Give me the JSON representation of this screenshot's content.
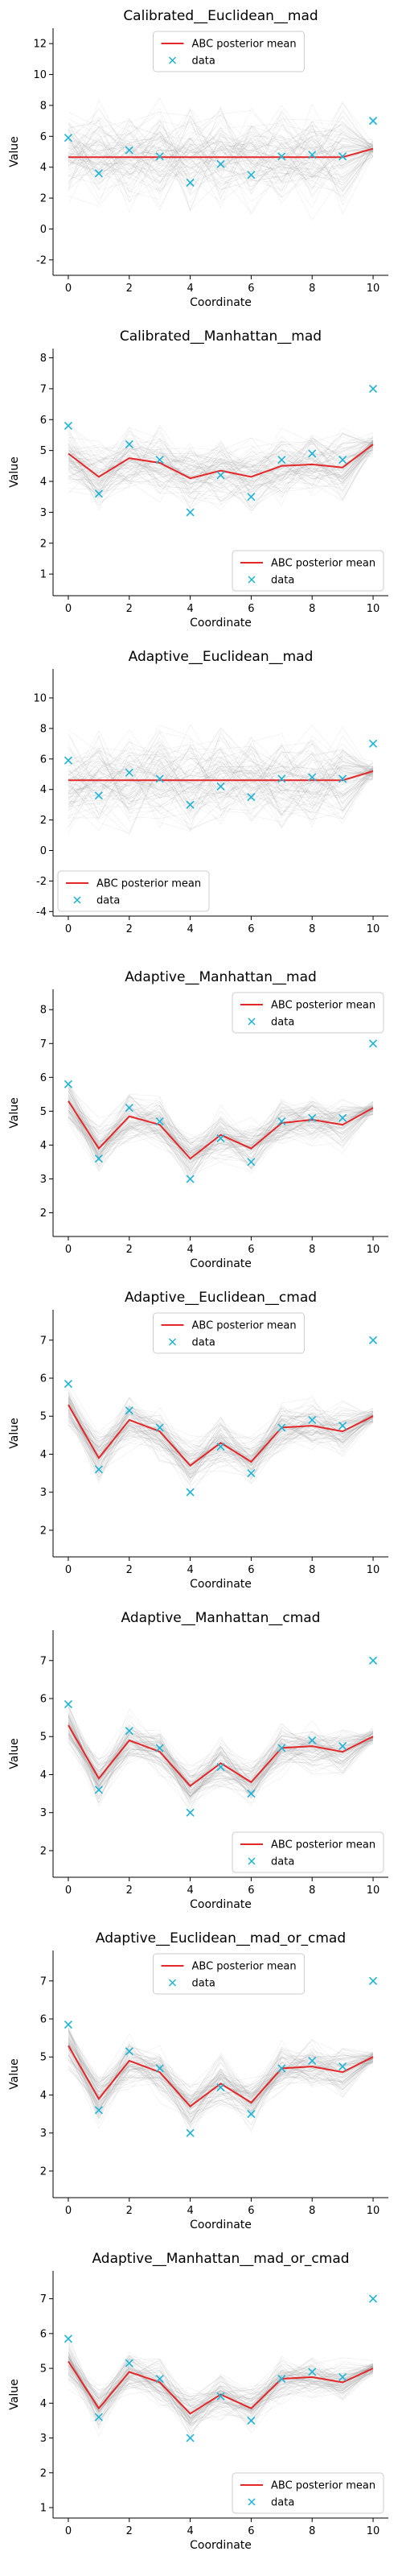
{
  "colors": {
    "posterior": "#e3282a",
    "data": "#1fb4d6",
    "samples": "#9a9a9a"
  },
  "chart_data": [
    {
      "type": "line",
      "title": "Calibrated__Euclidean__mad",
      "xlabel": "Coordinate",
      "ylabel": "Value",
      "x": [
        0,
        1,
        2,
        3,
        4,
        5,
        6,
        7,
        8,
        9,
        10
      ],
      "xlim": [
        -0.5,
        10.5
      ],
      "ylim": [
        -3,
        13
      ],
      "yticks": [
        -2,
        0,
        2,
        4,
        6,
        8,
        10,
        12
      ],
      "xticks": [
        0,
        2,
        4,
        6,
        8,
        10
      ],
      "legend_position": "upper center",
      "series": [
        {
          "name": "ABC posterior mean",
          "kind": "line",
          "values": [
            4.65,
            4.65,
            4.65,
            4.65,
            4.65,
            4.65,
            4.65,
            4.65,
            4.65,
            4.65,
            5.2
          ]
        },
        {
          "name": "data",
          "kind": "scatter",
          "values": [
            5.9,
            3.6,
            5.1,
            4.7,
            3.0,
            4.2,
            3.5,
            4.7,
            4.8,
            4.7,
            7.0
          ]
        }
      ],
      "spread": [
        4.5,
        4.5,
        4.5,
        4.5,
        4.5,
        4.5,
        4.5,
        4.5,
        4.5,
        4.5,
        0.8
      ]
    },
    {
      "type": "line",
      "title": "Calibrated__Manhattan__mad",
      "xlabel": "Coordinate",
      "ylabel": "Value",
      "x": [
        0,
        1,
        2,
        3,
        4,
        5,
        6,
        7,
        8,
        9,
        10
      ],
      "xlim": [
        -0.5,
        10.5
      ],
      "ylim": [
        0.3,
        8.3
      ],
      "yticks": [
        1,
        2,
        3,
        4,
        5,
        6,
        7,
        8
      ],
      "xticks": [
        0,
        2,
        4,
        6,
        8,
        10
      ],
      "legend_position": "lower right",
      "series": [
        {
          "name": "ABC posterior mean",
          "kind": "line",
          "values": [
            4.9,
            4.15,
            4.75,
            4.6,
            4.1,
            4.35,
            4.15,
            4.5,
            4.55,
            4.45,
            5.2
          ]
        },
        {
          "name": "data",
          "kind": "scatter",
          "values": [
            5.8,
            3.6,
            5.2,
            4.7,
            3.0,
            4.2,
            3.5,
            4.7,
            4.9,
            4.7,
            7.0
          ]
        }
      ],
      "spread": [
        1.6,
        1.6,
        1.6,
        1.6,
        1.6,
        1.6,
        1.6,
        1.6,
        1.6,
        1.6,
        0.5
      ]
    },
    {
      "type": "line",
      "title": "Adaptive__Euclidean__mad",
      "xlabel": "",
      "ylabel": "",
      "x": [
        0,
        1,
        2,
        3,
        4,
        5,
        6,
        7,
        8,
        9,
        10
      ],
      "xlim": [
        -0.5,
        10.5
      ],
      "ylim": [
        -4.3,
        11.9
      ],
      "yticks": [
        -4,
        -2,
        0,
        2,
        4,
        6,
        8,
        10
      ],
      "xticks": [
        0,
        2,
        4,
        6,
        8,
        10
      ],
      "legend_position": "lower left",
      "series": [
        {
          "name": "ABC posterior mean",
          "kind": "line",
          "values": [
            4.6,
            4.6,
            4.6,
            4.6,
            4.6,
            4.6,
            4.6,
            4.6,
            4.6,
            4.6,
            5.2
          ]
        },
        {
          "name": "data",
          "kind": "scatter",
          "values": [
            5.9,
            3.6,
            5.1,
            4.7,
            3.0,
            4.2,
            3.5,
            4.7,
            4.8,
            4.7,
            7.0
          ]
        }
      ],
      "spread": [
        4.6,
        4.6,
        4.6,
        4.6,
        4.6,
        4.6,
        4.6,
        4.6,
        4.6,
        4.6,
        0.8
      ]
    },
    {
      "type": "line",
      "title": "Adaptive__Manhattan__mad",
      "xlabel": "Coordinate",
      "ylabel": "Value",
      "x": [
        0,
        1,
        2,
        3,
        4,
        5,
        6,
        7,
        8,
        9,
        10
      ],
      "xlim": [
        -0.5,
        10.5
      ],
      "ylim": [
        1.3,
        8.6
      ],
      "yticks": [
        2,
        3,
        4,
        5,
        6,
        7,
        8
      ],
      "xticks": [
        0,
        2,
        4,
        6,
        8,
        10
      ],
      "legend_position": "upper right",
      "series": [
        {
          "name": "ABC posterior mean",
          "kind": "line",
          "values": [
            5.3,
            3.9,
            4.85,
            4.6,
            3.6,
            4.3,
            3.9,
            4.65,
            4.75,
            4.6,
            5.1
          ]
        },
        {
          "name": "data",
          "kind": "scatter",
          "values": [
            5.8,
            3.6,
            5.1,
            4.7,
            3.0,
            4.2,
            3.5,
            4.7,
            4.8,
            4.8,
            7.0
          ]
        }
      ],
      "spread": [
        1.1,
        1.1,
        1.1,
        1.1,
        1.1,
        1.1,
        1.1,
        1.1,
        1.1,
        1.1,
        0.35
      ]
    },
    {
      "type": "line",
      "title": "Adaptive__Euclidean__cmad",
      "xlabel": "Coordinate",
      "ylabel": "Value",
      "x": [
        0,
        1,
        2,
        3,
        4,
        5,
        6,
        7,
        8,
        9,
        10
      ],
      "xlim": [
        -0.5,
        10.5
      ],
      "ylim": [
        1.3,
        7.8
      ],
      "yticks": [
        2,
        3,
        4,
        5,
        6,
        7
      ],
      "xticks": [
        0,
        2,
        4,
        6,
        8,
        10
      ],
      "legend_position": "upper center",
      "series": [
        {
          "name": "ABC posterior mean",
          "kind": "line",
          "values": [
            5.3,
            3.9,
            4.9,
            4.6,
            3.7,
            4.3,
            3.8,
            4.7,
            4.75,
            4.6,
            5.0
          ]
        },
        {
          "name": "data",
          "kind": "scatter",
          "values": [
            5.85,
            3.6,
            5.15,
            4.7,
            3.0,
            4.2,
            3.5,
            4.7,
            4.9,
            4.75,
            7.0
          ]
        }
      ],
      "spread": [
        0.95,
        0.95,
        0.95,
        0.95,
        0.95,
        0.95,
        0.95,
        0.95,
        0.95,
        0.95,
        0.3
      ]
    },
    {
      "type": "line",
      "title": "Adaptive__Manhattan__cmad",
      "xlabel": "Coordinate",
      "ylabel": "Value",
      "x": [
        0,
        1,
        2,
        3,
        4,
        5,
        6,
        7,
        8,
        9,
        10
      ],
      "xlim": [
        -0.5,
        10.5
      ],
      "ylim": [
        1.3,
        7.8
      ],
      "yticks": [
        2,
        3,
        4,
        5,
        6,
        7
      ],
      "xticks": [
        0,
        2,
        4,
        6,
        8,
        10
      ],
      "legend_position": "lower right",
      "series": [
        {
          "name": "ABC posterior mean",
          "kind": "line",
          "values": [
            5.3,
            3.9,
            4.9,
            4.6,
            3.7,
            4.3,
            3.8,
            4.7,
            4.75,
            4.6,
            5.0
          ]
        },
        {
          "name": "data",
          "kind": "scatter",
          "values": [
            5.85,
            3.6,
            5.15,
            4.7,
            3.0,
            4.2,
            3.5,
            4.7,
            4.9,
            4.75,
            7.0
          ]
        }
      ],
      "spread": [
        0.9,
        0.9,
        0.9,
        0.9,
        0.9,
        0.9,
        0.9,
        0.9,
        0.9,
        0.9,
        0.3
      ]
    },
    {
      "type": "line",
      "title": "Adaptive__Euclidean__mad_or_cmad",
      "xlabel": "Coordinate",
      "ylabel": "Value",
      "x": [
        0,
        1,
        2,
        3,
        4,
        5,
        6,
        7,
        8,
        9,
        10
      ],
      "xlim": [
        -0.5,
        10.5
      ],
      "ylim": [
        1.3,
        7.8
      ],
      "yticks": [
        2,
        3,
        4,
        5,
        6,
        7
      ],
      "xticks": [
        0,
        2,
        4,
        6,
        8,
        10
      ],
      "legend_position": "upper center",
      "series": [
        {
          "name": "ABC posterior mean",
          "kind": "line",
          "values": [
            5.3,
            3.9,
            4.9,
            4.6,
            3.7,
            4.3,
            3.8,
            4.7,
            4.75,
            4.6,
            5.0
          ]
        },
        {
          "name": "data",
          "kind": "scatter",
          "values": [
            5.85,
            3.6,
            5.15,
            4.7,
            3.0,
            4.2,
            3.5,
            4.7,
            4.9,
            4.75,
            7.0
          ]
        }
      ],
      "spread": [
        0.95,
        0.95,
        0.95,
        0.95,
        0.95,
        0.95,
        0.95,
        0.95,
        0.95,
        0.95,
        0.3
      ]
    },
    {
      "type": "line",
      "title": "Adaptive__Manhattan__mad_or_cmad",
      "xlabel": "Coordinate",
      "ylabel": "Value",
      "x": [
        0,
        1,
        2,
        3,
        4,
        5,
        6,
        7,
        8,
        9,
        10
      ],
      "xlim": [
        -0.5,
        10.5
      ],
      "ylim": [
        0.7,
        7.8
      ],
      "yticks": [
        1,
        2,
        3,
        4,
        5,
        6,
        7
      ],
      "xticks": [
        0,
        2,
        4,
        6,
        8,
        10
      ],
      "legend_position": "lower right",
      "series": [
        {
          "name": "ABC posterior mean",
          "kind": "line",
          "values": [
            5.2,
            3.85,
            4.9,
            4.6,
            3.7,
            4.25,
            3.85,
            4.7,
            4.75,
            4.6,
            5.0
          ]
        },
        {
          "name": "data",
          "kind": "scatter",
          "values": [
            5.85,
            3.6,
            5.15,
            4.7,
            3.0,
            4.2,
            3.5,
            4.7,
            4.9,
            4.75,
            7.0
          ]
        }
      ],
      "spread": [
        0.9,
        0.9,
        0.9,
        0.9,
        0.9,
        0.9,
        0.9,
        0.9,
        0.9,
        0.9,
        0.3
      ]
    }
  ]
}
